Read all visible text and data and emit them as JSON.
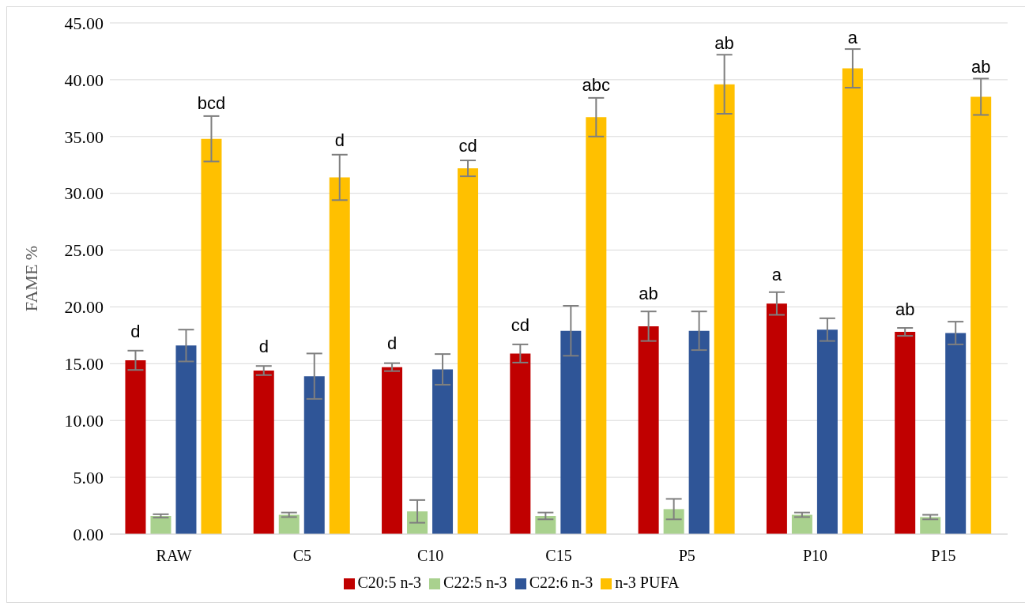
{
  "chart_data": {
    "type": "bar",
    "ylabel": "FAME %",
    "categories": [
      "RAW",
      "C5",
      "C10",
      "C15",
      "P5",
      "P10",
      "P15"
    ],
    "series": [
      {
        "name": "C20:5 n-3",
        "color": "#c00000",
        "values": [
          15.3,
          14.4,
          14.7,
          15.9,
          18.3,
          20.3,
          17.8
        ],
        "errors": [
          0.85,
          0.4,
          0.35,
          0.8,
          1.3,
          1.0,
          0.35
        ],
        "value_labels": [
          "d",
          "d",
          "d",
          "cd",
          "ab",
          "a",
          "ab"
        ]
      },
      {
        "name": "C22:5 n-3",
        "color": "#a9d18e",
        "values": [
          1.6,
          1.7,
          2.0,
          1.6,
          2.2,
          1.7,
          1.5
        ],
        "errors": [
          0.15,
          0.2,
          1.0,
          0.3,
          0.9,
          0.2,
          0.2
        ]
      },
      {
        "name": "C22:6 n-3",
        "color": "#2f5597",
        "values": [
          16.6,
          13.9,
          14.5,
          17.9,
          17.9,
          18.0,
          17.7
        ],
        "errors": [
          1.4,
          2.0,
          1.35,
          2.2,
          1.7,
          1.0,
          1.0
        ]
      },
      {
        "name": "n-3 PUFA",
        "color": "#ffc000",
        "values": [
          34.8,
          31.4,
          32.2,
          36.7,
          39.6,
          41.0,
          38.5
        ],
        "errors": [
          2.0,
          2.0,
          0.7,
          1.7,
          2.6,
          1.7,
          1.6
        ],
        "value_labels": [
          "bcd",
          "d",
          "cd",
          "abc",
          "ab",
          "a",
          "ab"
        ]
      }
    ],
    "ylim": [
      0,
      45
    ],
    "yticks": [
      {
        "value": 0,
        "label": "0.00"
      },
      {
        "value": 5,
        "label": "5.00"
      },
      {
        "value": 10,
        "label": "10.00"
      },
      {
        "value": 15,
        "label": "15.00"
      },
      {
        "value": 20,
        "label": "20.00"
      },
      {
        "value": 25,
        "label": "25.00"
      },
      {
        "value": 30,
        "label": "30.00"
      },
      {
        "value": 35,
        "label": "35.00"
      },
      {
        "value": 40,
        "label": "40.00"
      },
      {
        "value": 45,
        "label": "45.00"
      }
    ],
    "grid": "y",
    "legend": "bottom"
  }
}
